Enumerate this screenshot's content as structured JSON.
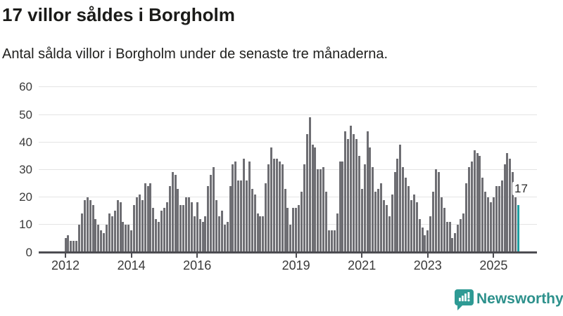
{
  "header": {
    "title": "17 villor såldes i Borgholm",
    "subtitle": "Antal sålda villor i Borgholm under de senaste tre månaderna."
  },
  "chart_data": {
    "type": "bar",
    "title": "17 villor såldes i Borgholm",
    "subtitle": "Antal sålda villor i Borgholm under de senaste tre månaderna.",
    "ylabel": "Antal sålda villor",
    "xlabel": "",
    "ylim": [
      0,
      60
    ],
    "yticks": [
      0,
      10,
      20,
      30,
      40,
      50,
      60
    ],
    "xtick_years": [
      2012,
      2014,
      2016,
      2019,
      2021,
      2023,
      2025
    ],
    "grid": "horizontal",
    "x_start_month": "2012-01",
    "x_end_month": "2025-10",
    "values": [
      5,
      6,
      4,
      4,
      4,
      10,
      14,
      19,
      20,
      19,
      17,
      12,
      10,
      8,
      7,
      10,
      14,
      13,
      15,
      19,
      18,
      11,
      10,
      10,
      8,
      17,
      20,
      21,
      19,
      25,
      24,
      25,
      16,
      12,
      11,
      15,
      16,
      18,
      24,
      29,
      28,
      23,
      17,
      17,
      20,
      20,
      18,
      13,
      18,
      12,
      11,
      13,
      24,
      28,
      31,
      19,
      13,
      15,
      10,
      11,
      24,
      32,
      33,
      26,
      26,
      34,
      26,
      33,
      23,
      21,
      14,
      13,
      13,
      25,
      32,
      38,
      34,
      34,
      33,
      32,
      23,
      16,
      10,
      16,
      16,
      17,
      22,
      32,
      43,
      49,
      39,
      38,
      30,
      30,
      31,
      22,
      8,
      8,
      8,
      14,
      33,
      33,
      44,
      41,
      46,
      43,
      41,
      35,
      23,
      32,
      44,
      38,
      31,
      22,
      23,
      25,
      19,
      17,
      13,
      21,
      29,
      34,
      39,
      31,
      27,
      24,
      19,
      21,
      18,
      12,
      9,
      6,
      8,
      13,
      22,
      30,
      29,
      20,
      16,
      11,
      11,
      5,
      7,
      10,
      12,
      14,
      25,
      31,
      33,
      37,
      36,
      35,
      27,
      22,
      20,
      18,
      20,
      24,
      24,
      26,
      32,
      36,
      34,
      29,
      20,
      17
    ],
    "highlight": {
      "index_from_end": 1,
      "value": 17,
      "label": "17"
    },
    "colors": {
      "bar": "#6e6e73",
      "highlight": "#1f9fa1",
      "grid": "#e4e4e4",
      "axis": "#4d4d52"
    }
  },
  "annotation": {
    "label": "17"
  },
  "footer": {
    "brand": "Newsworthy",
    "brand_color": "#2d918c",
    "logo_icon": "bar-chart-speech-bubble-icon"
  }
}
